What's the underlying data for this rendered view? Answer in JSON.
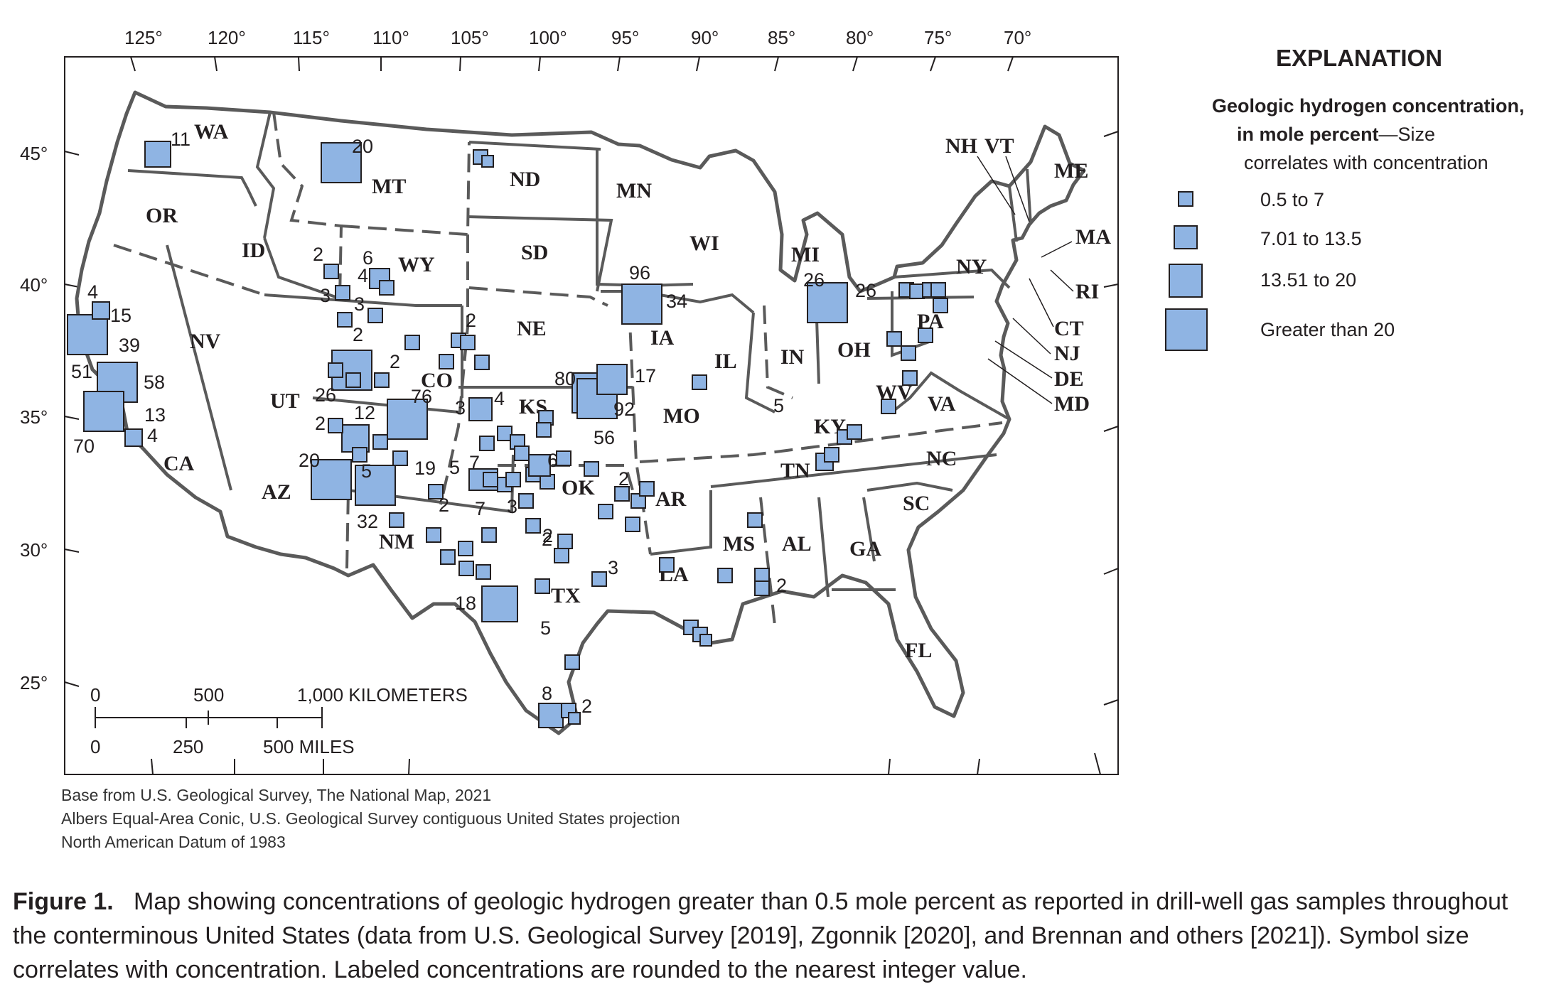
{
  "longitude_labels": [
    "125°",
    "120°",
    "115°",
    "110°",
    "105°",
    "100°",
    "95°",
    "90°",
    "85°",
    "80°",
    "75°",
    "70°"
  ],
  "latitude_labels": [
    "45°",
    "40°",
    "35°",
    "30°",
    "25°"
  ],
  "states": [
    "WA",
    "OR",
    "ID",
    "MT",
    "WY",
    "ND",
    "SD",
    "MN",
    "WI",
    "MI",
    "NV",
    "CA",
    "UT",
    "CO",
    "NE",
    "IA",
    "IL",
    "IN",
    "OH",
    "PA",
    "NY",
    "KS",
    "MO",
    "KY",
    "WV",
    "VA",
    "AZ",
    "NM",
    "OK",
    "AR",
    "TN",
    "NC",
    "SC",
    "MS",
    "AL",
    "GA",
    "TX",
    "LA",
    "FL",
    "NH",
    "VT",
    "ME",
    "MA",
    "RI",
    "CT",
    "NJ",
    "DE",
    "MD"
  ],
  "concentration_labels": [
    "11",
    "20",
    "2",
    "6",
    "4",
    "3",
    "3",
    "2",
    "2",
    "2",
    "4",
    "15",
    "39",
    "51",
    "58",
    "13",
    "4",
    "70",
    "26",
    "2",
    "12",
    "20",
    "5",
    "19",
    "32",
    "76",
    "3",
    "4",
    "2",
    "5",
    "7",
    "7",
    "3",
    "2",
    "6",
    "80",
    "17",
    "92",
    "56",
    "96",
    "34",
    "2",
    "3",
    "2",
    "5",
    "18",
    "8",
    "2",
    "5",
    "26",
    "26",
    "2"
  ],
  "scale_bar": {
    "km_labels": [
      "0",
      "500",
      "1,000 KILOMETERS"
    ],
    "mile_labels": [
      "0",
      "250",
      "500 MILES"
    ]
  },
  "legend": {
    "title": "EXPLANATION",
    "heading_bold_1": "Geologic hydrogen concentration,",
    "heading_bold_2": "in mole percent",
    "heading_rest_2": "—Size",
    "heading_3": "correlates with concentration",
    "classes": [
      "0.5 to 7",
      "7.01 to 13.5",
      "13.51 to 20",
      "Greater than 20"
    ]
  },
  "source_notes": [
    "Base from U.S. Geological Survey, The National Map, 2021",
    "Albers Equal-Area Conic, U.S. Geological Survey contiguous United States projection",
    "North American Datum of 1983"
  ],
  "caption": {
    "label": "Figure 1.",
    "text": "Map showing concentrations of geologic hydrogen greater than 0.5 mole percent as reported in drill-well gas samples throughout the conterminous United States (data from U.S. Geological Survey [2019], Zgonnik [2020], and Brennan and others [2021]). Symbol size correlates with concentration. Labeled concentrations are rounded to the nearest integer value."
  },
  "colors": {
    "symbol_fill": "#8fb4e3",
    "border": "#5a5a5a",
    "text": "#231f20"
  }
}
